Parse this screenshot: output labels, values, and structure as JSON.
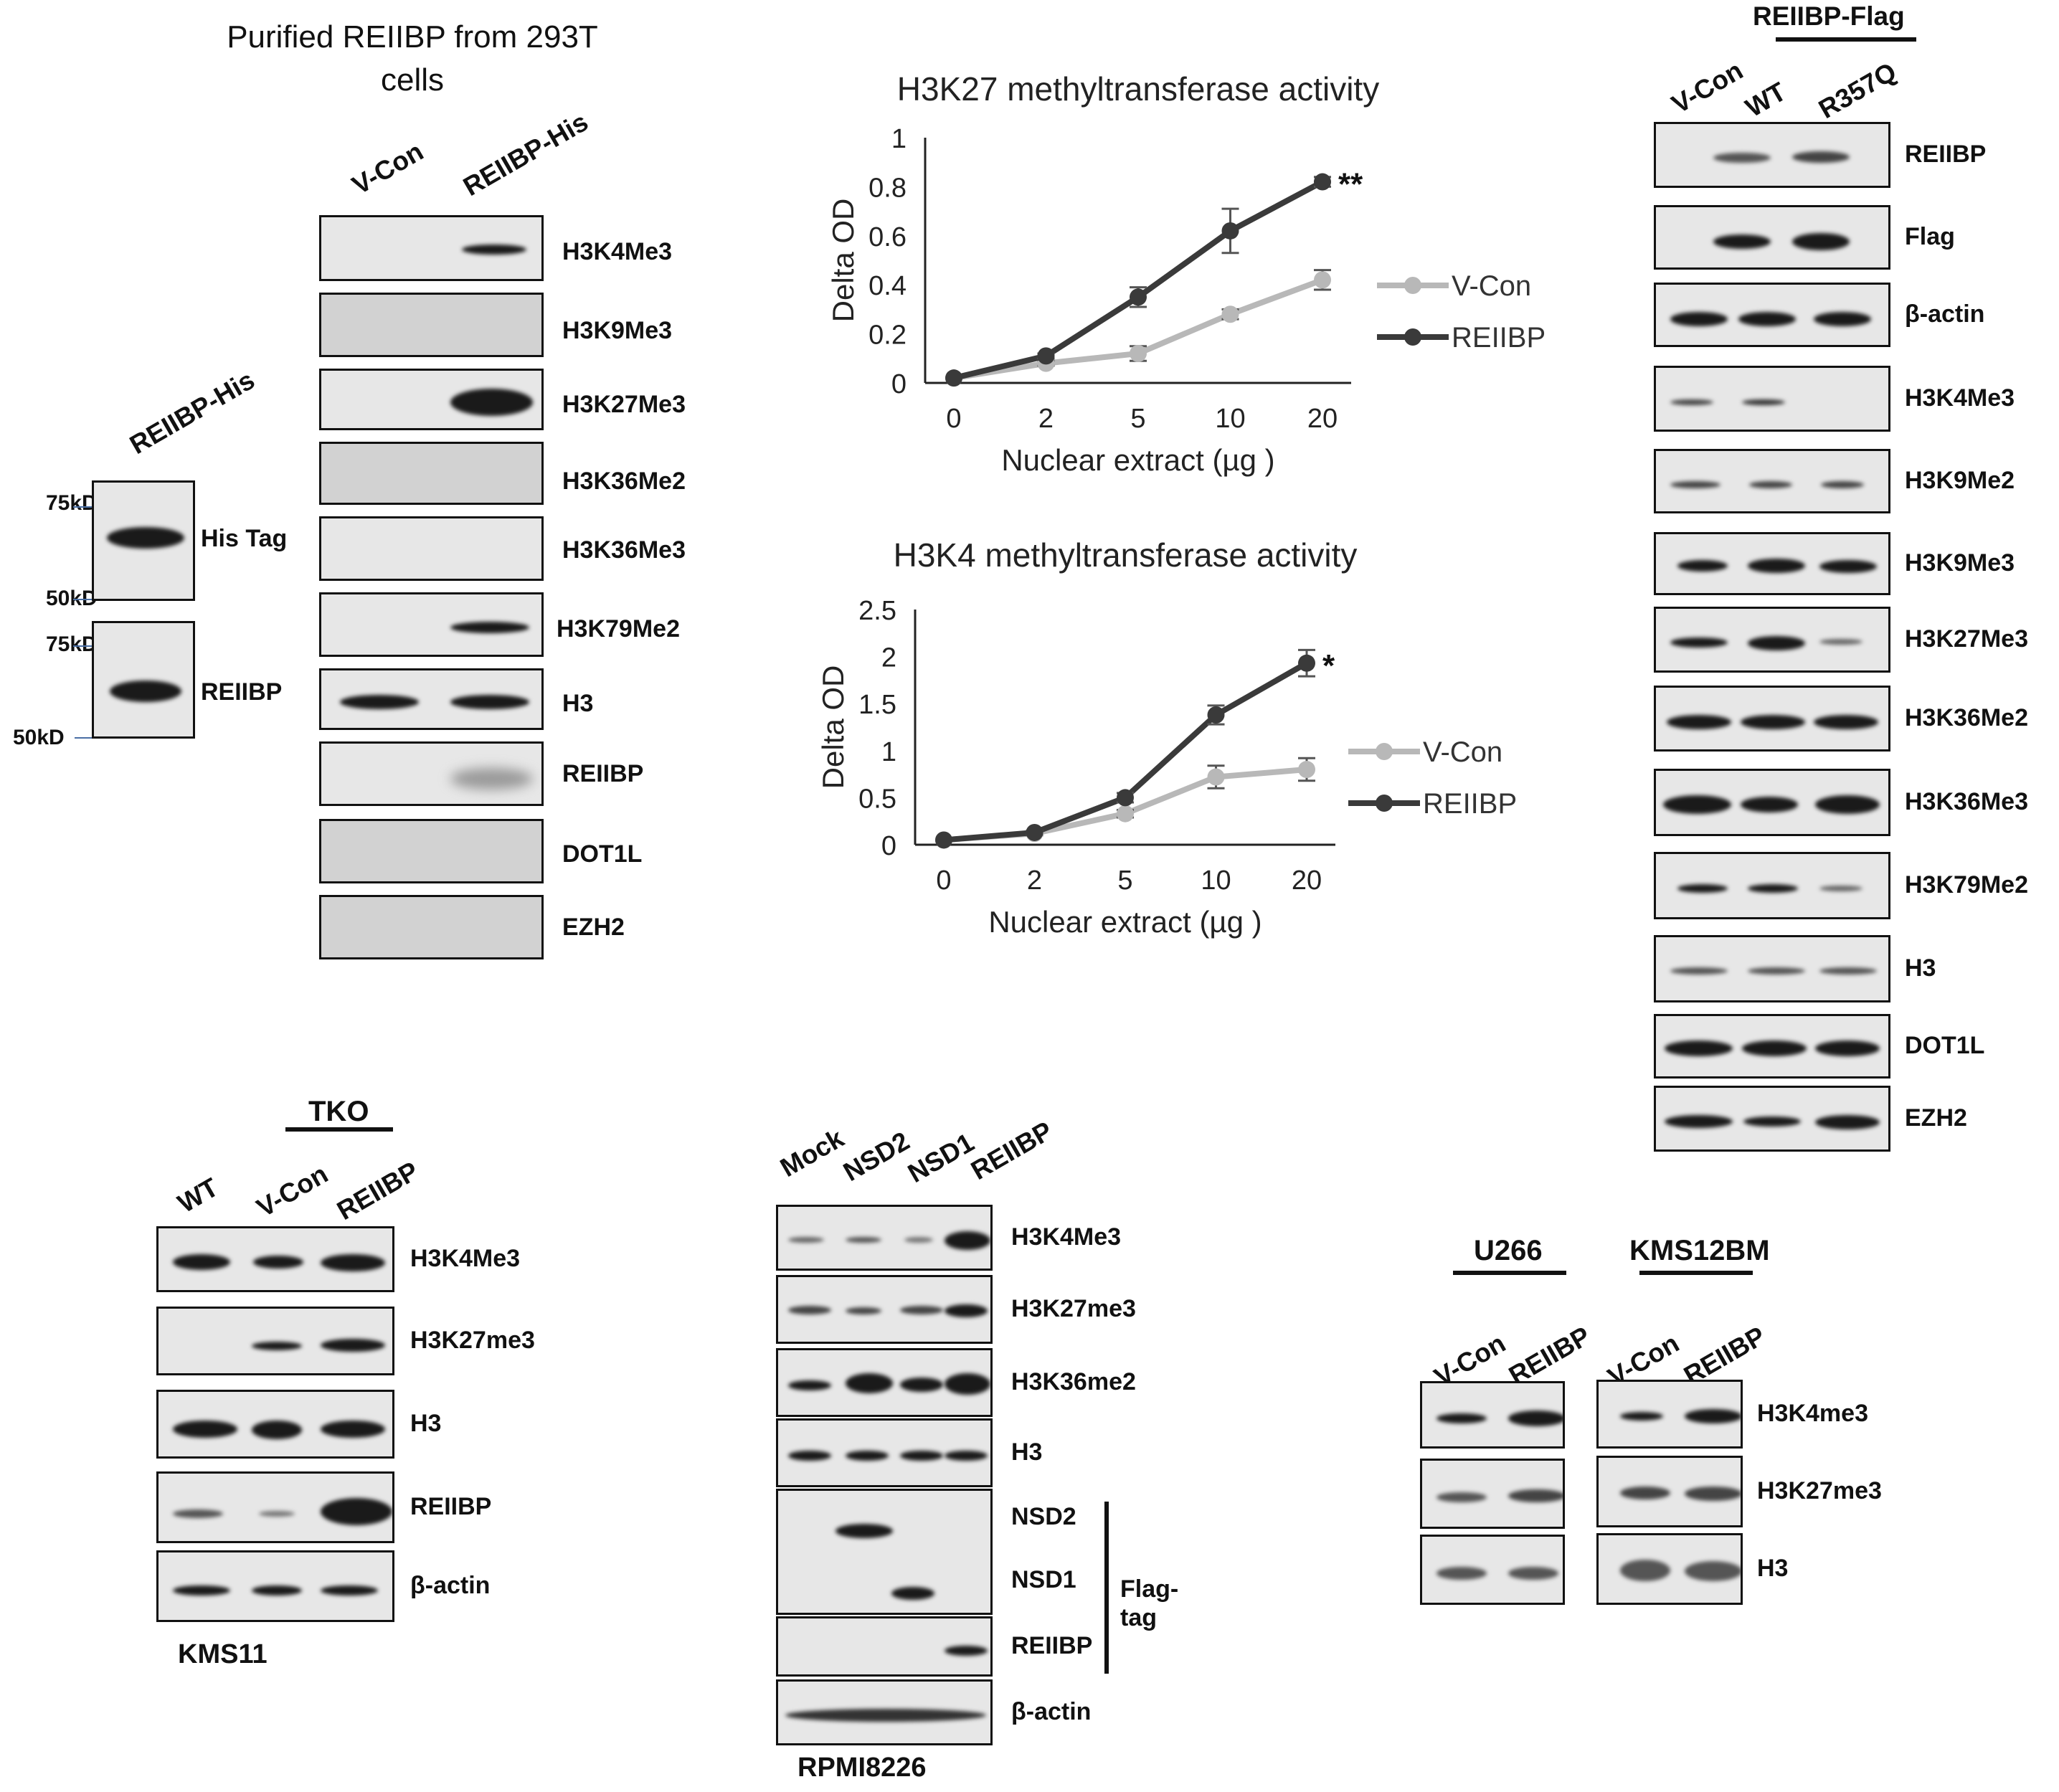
{
  "panelA": {
    "title": "Purified REIIBP from 293T cells",
    "small_lane": "REIIBP-His",
    "markers": [
      "75kD",
      "50kD",
      "75kD",
      "50kD"
    ],
    "small_labels": [
      "His Tag",
      "REIIBP"
    ],
    "lanes": [
      "V-Con",
      "REIIBP-His"
    ],
    "labels": [
      "H3K4Me3",
      "H3K9Me3",
      "H3K27Me3",
      "H3K36Me2",
      "H3K36Me3",
      "H3K79Me2",
      "H3",
      "REIIBP",
      "DOT1L",
      "EZH2"
    ]
  },
  "chart_data": [
    {
      "type": "line",
      "title": "H3K27 methyltransferase activity",
      "xlabel": "Nuclear extract (µg )",
      "ylabel": "Delta OD",
      "categories": [
        "0",
        "2",
        "5",
        "10",
        "20"
      ],
      "yticks": [
        "0",
        "0.2",
        "0.4",
        "0.6",
        "0.8",
        "1"
      ],
      "ylim": [
        0,
        1
      ],
      "series": [
        {
          "name": "V-Con",
          "color": "#b8b8b8",
          "values": [
            0.02,
            0.08,
            0.12,
            0.28,
            0.42
          ],
          "errors": [
            0,
            0.01,
            0.03,
            0.02,
            0.04
          ]
        },
        {
          "name": "REIIBP",
          "color": "#3a3a3a",
          "values": [
            0.02,
            0.11,
            0.35,
            0.62,
            0.82
          ],
          "errors": [
            0,
            0.01,
            0.04,
            0.09,
            0.02
          ]
        }
      ],
      "annotation": "**",
      "legend": "right"
    },
    {
      "type": "line",
      "title": "H3K4 methyltransferase activity",
      "xlabel": "Nuclear extract (µg )",
      "ylabel": "Delta OD",
      "categories": [
        "0",
        "2",
        "5",
        "10",
        "20"
      ],
      "yticks": [
        "0",
        "0.5",
        "1",
        "1.5",
        "2",
        "2.5"
      ],
      "ylim": [
        0,
        2.5
      ],
      "series": [
        {
          "name": "V-Con",
          "color": "#b8b8b8",
          "values": [
            0.05,
            0.12,
            0.33,
            0.72,
            0.8
          ],
          "errors": [
            0,
            0.02,
            0.04,
            0.12,
            0.12
          ]
        },
        {
          "name": "REIIBP",
          "color": "#3a3a3a",
          "values": [
            0.05,
            0.13,
            0.5,
            1.38,
            1.93
          ],
          "errors": [
            0,
            0.02,
            0.05,
            0.1,
            0.14
          ]
        }
      ],
      "annotation": "*",
      "legend": "right"
    }
  ],
  "panelD": {
    "header": "REIIBP-Flag",
    "lanes": [
      "V-Con",
      "WT",
      "R357Q"
    ],
    "labels": [
      "REIIBP",
      "Flag",
      "β-actin",
      "H3K4Me3",
      "H3K9Me2",
      "H3K9Me3",
      "H3K27Me3",
      "H3K36Me2",
      "H3K36Me3",
      "H3K79Me2",
      "H3",
      "DOT1L",
      "EZH2"
    ]
  },
  "panelE": {
    "header": "TKO",
    "lanes": [
      "WT",
      "V-Con",
      "REIIBP"
    ],
    "labels": [
      "H3K4Me3",
      "H3K27me3",
      "H3",
      "REIIBP",
      "β-actin"
    ],
    "cell_line": "KMS11"
  },
  "panelF": {
    "lanes": [
      "Mock",
      "NSD2",
      "NSD1",
      "REIIBP"
    ],
    "labels": [
      "H3K4Me3",
      "H3K27me3",
      "H3K36me2",
      "H3",
      "NSD2",
      "NSD1",
      "REIIBP",
      "β-actin"
    ],
    "bracket": "Flag-tag",
    "cell_line": "RPMI8226"
  },
  "panelG": {
    "headers": [
      "U266",
      "KMS12BM"
    ],
    "lanes": [
      "V-Con",
      "REIIBP",
      "V-Con",
      "REIIBP"
    ],
    "labels": [
      "H3K4me3",
      "H3K27me3",
      "H3"
    ]
  }
}
